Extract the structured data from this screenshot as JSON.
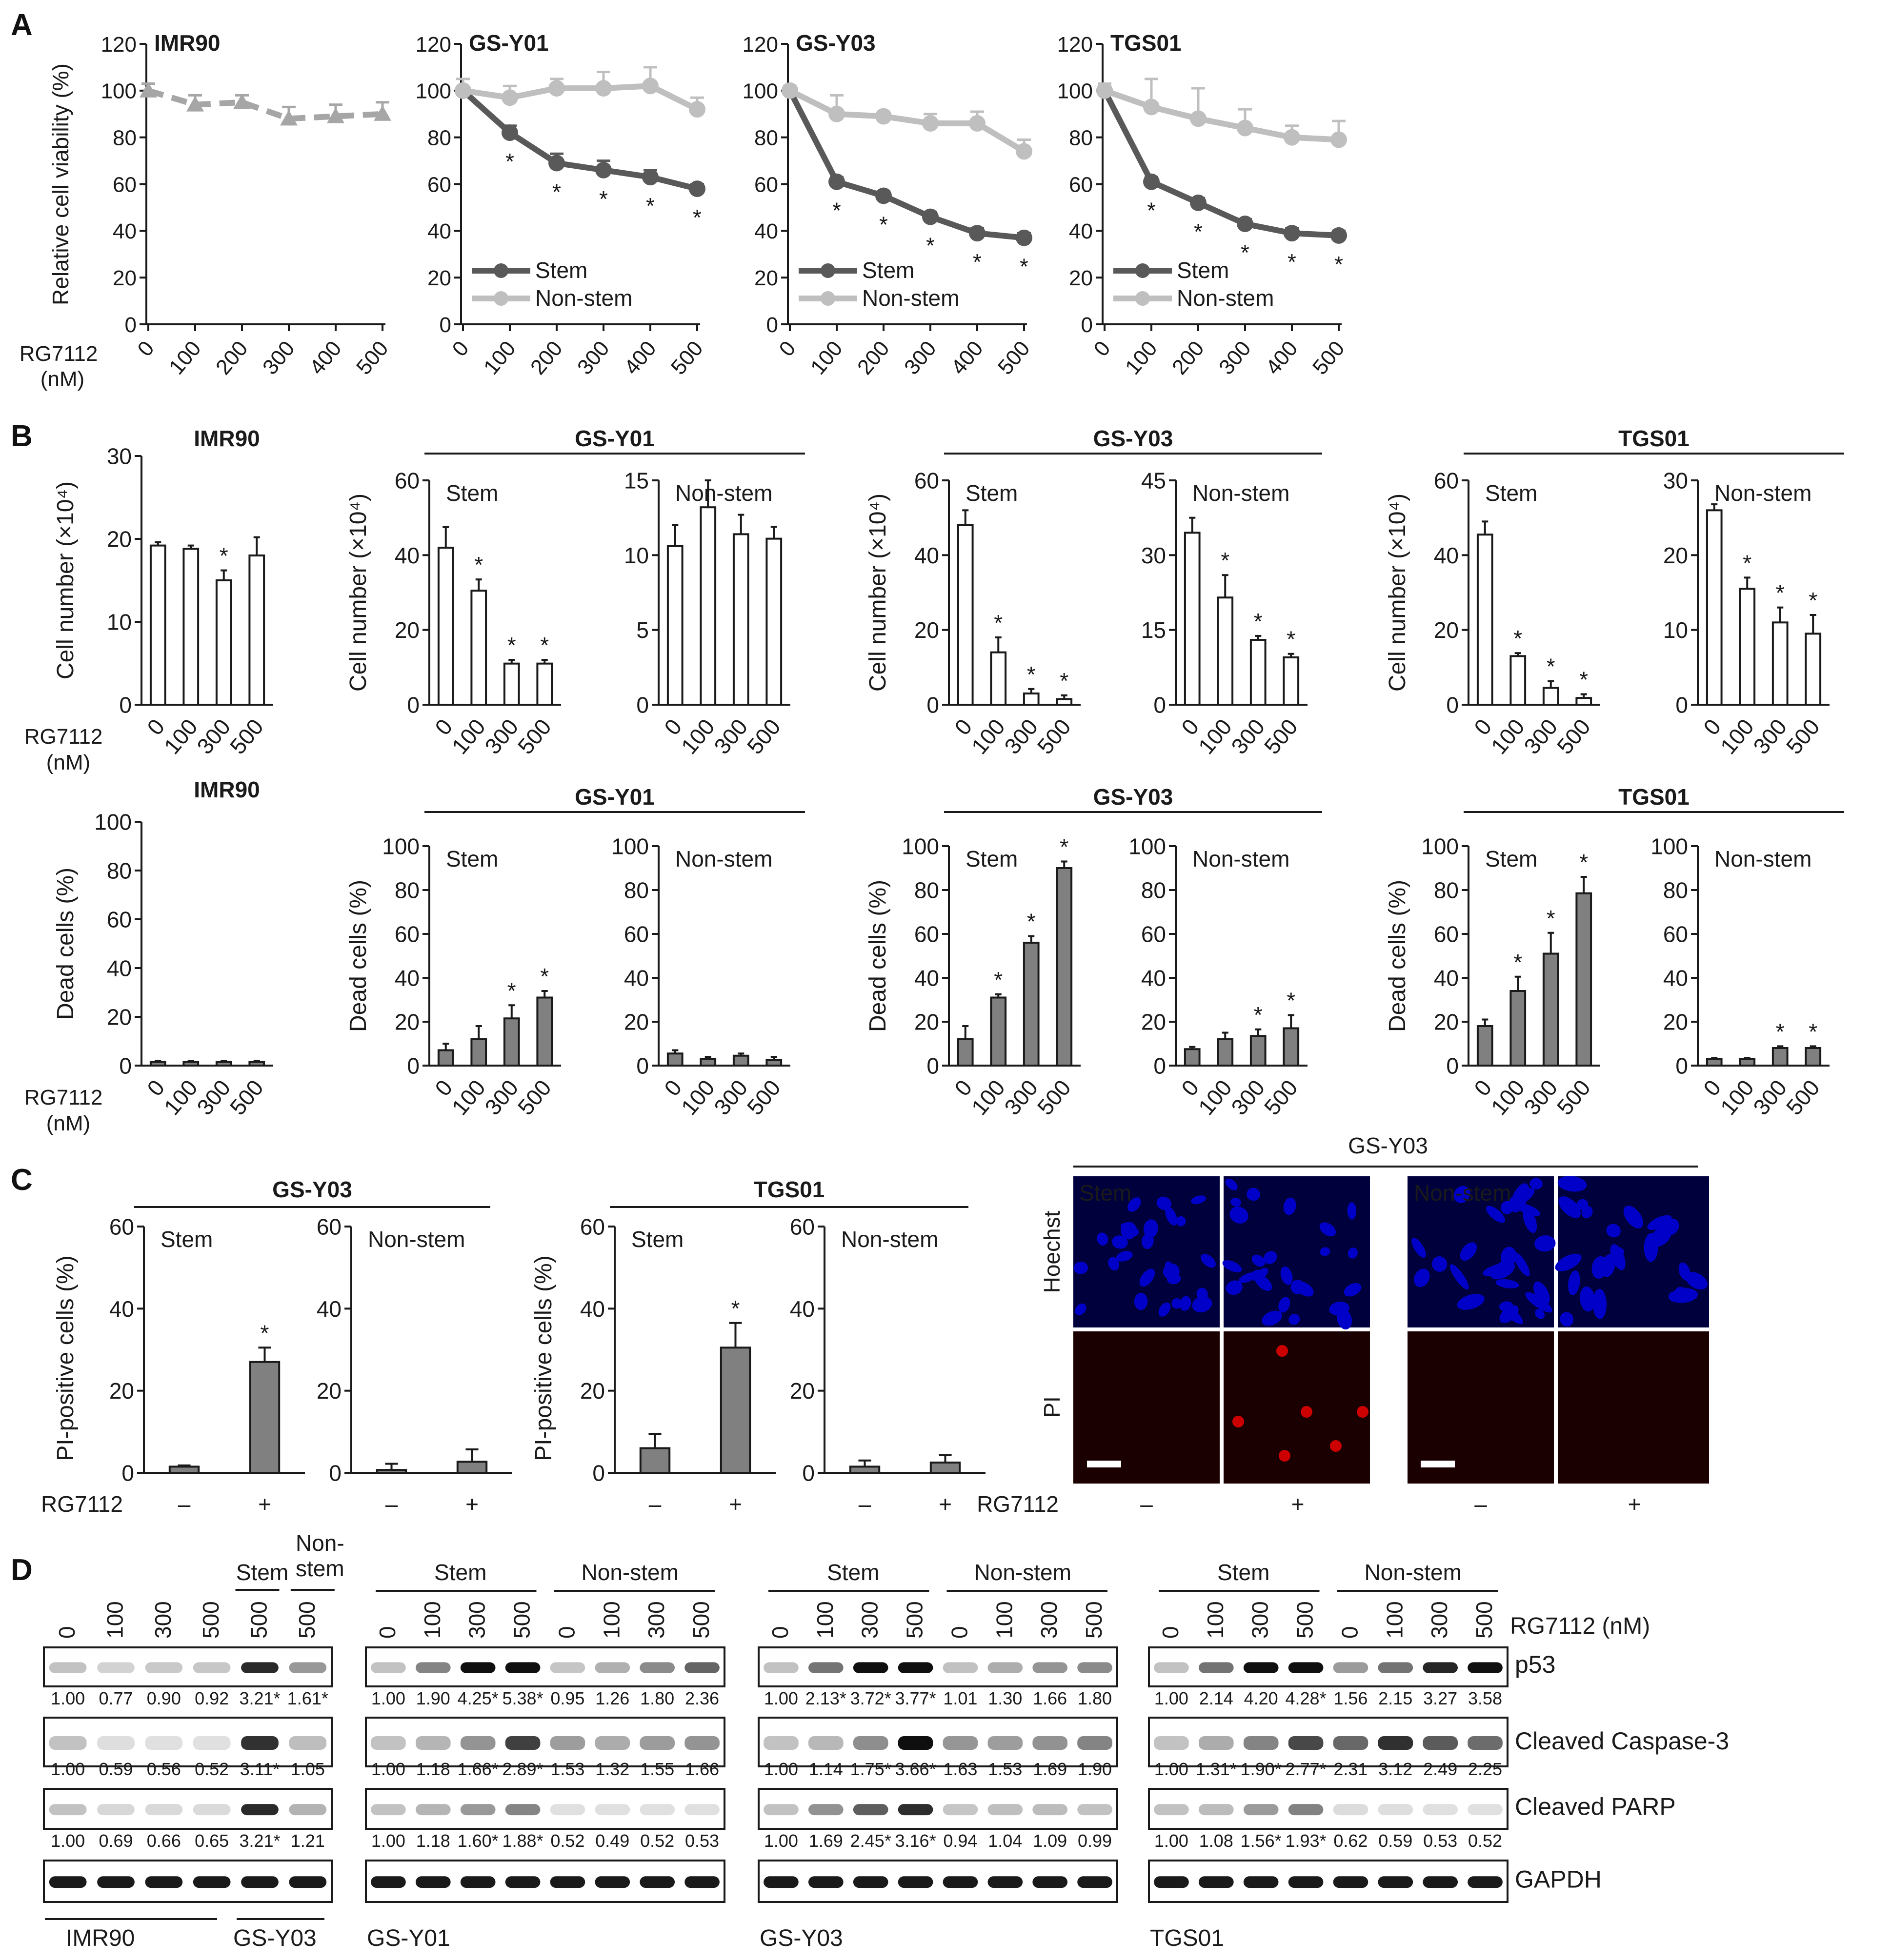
{
  "panel_labels": [
    "A",
    "B",
    "C",
    "D"
  ],
  "colors": {
    "stem": "#595959",
    "nonstem": "#bfbfbf",
    "imr90": "#a6a6a6",
    "bar_white": "#ffffff",
    "bar_gray": "#808080",
    "hoechst": "#0000c8",
    "pi": "#cc0000",
    "ink": "#1a1a1a"
  },
  "common": {
    "drug": "RG7112",
    "nM": "(nM)",
    "drug_nm": "RG7112 (nM)",
    "stem": "Stem",
    "nonstem": "Non-stem",
    "star": "*",
    "minus": "–",
    "plus": "+"
  },
  "panelA": {
    "ylabel": "Relative cell viability (%)",
    "yticks": [
      "0",
      "20",
      "40",
      "60",
      "80",
      "100",
      "120"
    ],
    "xticks": [
      "0",
      "100",
      "200",
      "300",
      "400",
      "500"
    ],
    "chart_data": [
      {
        "type": "line",
        "title": "IMR90",
        "x": [
          0,
          100,
          200,
          300,
          400,
          500
        ],
        "ylim": [
          0,
          120
        ],
        "series": [
          {
            "name": "",
            "values": [
              100,
              94,
              95,
              88,
              89,
              90
            ],
            "errors": [
              3,
              4,
              3,
              5,
              5,
              5
            ],
            "sig": []
          }
        ]
      },
      {
        "type": "line",
        "title": "GS-Y01",
        "x": [
          0,
          100,
          200,
          300,
          400,
          500
        ],
        "ylim": [
          0,
          120
        ],
        "series": [
          {
            "name": "Stem",
            "values": [
              100,
              82,
              69,
              66,
              63,
              58
            ],
            "errors": [
              0,
              3,
              4,
              4,
              3,
              2
            ],
            "sig": [
              1,
              2,
              3,
              4,
              5
            ]
          },
          {
            "name": "Non-stem",
            "values": [
              100,
              97,
              101,
              101,
              102,
              92
            ],
            "errors": [
              5,
              5,
              4,
              7,
              8,
              5
            ],
            "sig": []
          }
        ]
      },
      {
        "type": "line",
        "title": "GS-Y03",
        "x": [
          0,
          100,
          200,
          300,
          400,
          500
        ],
        "ylim": [
          0,
          120
        ],
        "series": [
          {
            "name": "Stem",
            "values": [
              100,
              61,
              55,
              46,
              39,
              37
            ],
            "errors": [
              0,
              2,
              2,
              2,
              2,
              2
            ],
            "sig": [
              1,
              2,
              3,
              4,
              5
            ]
          },
          {
            "name": "Non-stem",
            "values": [
              100,
              90,
              89,
              86,
              86,
              74
            ],
            "errors": [
              2,
              8,
              2,
              4,
              5,
              5
            ],
            "sig": []
          }
        ]
      },
      {
        "type": "line",
        "title": "TGS01",
        "x": [
          0,
          100,
          200,
          300,
          400,
          500
        ],
        "ylim": [
          0,
          120
        ],
        "series": [
          {
            "name": "Stem",
            "values": [
              100,
              61,
              52,
              43,
              39,
              38
            ],
            "errors": [
              0,
              2,
              2,
              2,
              2,
              2
            ],
            "sig": [
              1,
              2,
              3,
              4,
              5
            ]
          },
          {
            "name": "Non-stem",
            "values": [
              100,
              93,
              88,
              84,
              80,
              79
            ],
            "errors": [
              3,
              12,
              13,
              8,
              5,
              8
            ],
            "sig": []
          }
        ]
      }
    ]
  },
  "panelB": {
    "ylabel_count": "Cell number (×10⁴)",
    "ylabel_dead": "Dead cells (%)",
    "xticks": [
      "0",
      "100",
      "300",
      "500"
    ],
    "groups": [
      "GS-Y01",
      "GS-Y03",
      "TGS01"
    ],
    "chart_data": [
      {
        "type": "bar",
        "title": "IMR90",
        "categories": [
          "0",
          "100",
          "300",
          "500"
        ],
        "values": [
          19.2,
          18.8,
          15,
          18
        ],
        "errors": [
          0.4,
          0.4,
          1.2,
          2.2
        ],
        "ylim": [
          0,
          30
        ],
        "yticks": [
          "0",
          "10",
          "20",
          "30"
        ],
        "sig": [
          2
        ]
      },
      {
        "type": "bar",
        "title": "Stem",
        "categories": [
          "0",
          "100",
          "300",
          "500"
        ],
        "values": [
          42,
          30.5,
          11,
          11
        ],
        "errors": [
          5.5,
          3,
          1,
          1
        ],
        "ylim": [
          0,
          60
        ],
        "yticks": [
          "0",
          "20",
          "40",
          "60"
        ],
        "sig": [
          1,
          2,
          3
        ]
      },
      {
        "type": "bar",
        "title": "Non-stem",
        "categories": [
          "0",
          "100",
          "300",
          "500"
        ],
        "values": [
          10.6,
          13.2,
          11.4,
          11.1
        ],
        "errors": [
          1.4,
          1.8,
          1.3,
          0.8
        ],
        "ylim": [
          0,
          15
        ],
        "yticks": [
          "0",
          "5",
          "10",
          "15"
        ],
        "sig": []
      },
      {
        "type": "bar",
        "title": "Stem",
        "categories": [
          "0",
          "100",
          "300",
          "500"
        ],
        "values": [
          48,
          14,
          3,
          1.5
        ],
        "errors": [
          4,
          4,
          1.2,
          1
        ],
        "ylim": [
          0,
          60
        ],
        "yticks": [
          "0",
          "20",
          "40",
          "60"
        ],
        "sig": [
          1,
          2,
          3
        ]
      },
      {
        "type": "bar",
        "title": "Non-stem",
        "categories": [
          "0",
          "100",
          "300",
          "500"
        ],
        "values": [
          34.5,
          21.5,
          13,
          9.5
        ],
        "errors": [
          3,
          4.5,
          0.8,
          0.7
        ],
        "ylim": [
          0,
          45
        ],
        "yticks": [
          "0",
          "15",
          "30",
          "45"
        ],
        "sig": [
          1,
          2,
          3
        ]
      },
      {
        "type": "bar",
        "title": "Stem",
        "categories": [
          "0",
          "100",
          "300",
          "500"
        ],
        "values": [
          45.5,
          13,
          4.5,
          1.8
        ],
        "errors": [
          3.5,
          0.8,
          1.8,
          1
        ],
        "ylim": [
          0,
          60
        ],
        "yticks": [
          "0",
          "20",
          "40",
          "60"
        ],
        "sig": [
          1,
          2,
          3
        ]
      },
      {
        "type": "bar",
        "title": "Non-stem",
        "categories": [
          "0",
          "100",
          "300",
          "500"
        ],
        "values": [
          26,
          15.5,
          11,
          9.5
        ],
        "errors": [
          0.8,
          1.5,
          2,
          2.5
        ],
        "ylim": [
          0,
          30
        ],
        "yticks": [
          "0",
          "10",
          "20",
          "30"
        ],
        "sig": [
          1,
          2,
          3
        ]
      },
      {
        "type": "bar",
        "title": "IMR90",
        "categories": [
          "0",
          "100",
          "300",
          "500"
        ],
        "values": [
          1.5,
          1.5,
          1.5,
          1.5
        ],
        "errors": [
          0.5,
          0.5,
          0.5,
          0.5
        ],
        "ylim": [
          0,
          100
        ],
        "yticks": [
          "0",
          "20",
          "40",
          "60",
          "80",
          "100"
        ],
        "sig": []
      },
      {
        "type": "bar",
        "title": "Stem",
        "categories": [
          "0",
          "100",
          "300",
          "500"
        ],
        "values": [
          7,
          12,
          21.5,
          31
        ],
        "errors": [
          3,
          6,
          6,
          3
        ],
        "ylim": [
          0,
          100
        ],
        "yticks": [
          "0",
          "20",
          "40",
          "60",
          "80",
          "100"
        ],
        "sig": [
          2,
          3
        ]
      },
      {
        "type": "bar",
        "title": "Non-stem",
        "categories": [
          "0",
          "100",
          "300",
          "500"
        ],
        "values": [
          5.5,
          3,
          4.5,
          2.5
        ],
        "errors": [
          1.5,
          1,
          1,
          1.5
        ],
        "ylim": [
          0,
          100
        ],
        "yticks": [
          "0",
          "20",
          "40",
          "60",
          "80",
          "100"
        ],
        "sig": []
      },
      {
        "type": "bar",
        "title": "Stem",
        "categories": [
          "0",
          "100",
          "300",
          "500"
        ],
        "values": [
          12,
          31,
          56,
          90
        ],
        "errors": [
          6,
          1.5,
          3,
          3
        ],
        "ylim": [
          0,
          100
        ],
        "yticks": [
          "0",
          "20",
          "40",
          "60",
          "80",
          "100"
        ],
        "sig": [
          1,
          2,
          3
        ]
      },
      {
        "type": "bar",
        "title": "Non-stem",
        "categories": [
          "0",
          "100",
          "300",
          "500"
        ],
        "values": [
          7.5,
          12,
          13.5,
          17
        ],
        "errors": [
          1,
          3,
          3,
          6
        ],
        "ylim": [
          0,
          100
        ],
        "yticks": [
          "0",
          "20",
          "40",
          "60",
          "80",
          "100"
        ],
        "sig": [
          2,
          3
        ]
      },
      {
        "type": "bar",
        "title": "Stem",
        "categories": [
          "0",
          "100",
          "300",
          "500"
        ],
        "values": [
          18,
          34,
          51,
          78.5
        ],
        "errors": [
          3,
          6.5,
          9.5,
          7.5
        ],
        "ylim": [
          0,
          100
        ],
        "yticks": [
          "0",
          "20",
          "40",
          "60",
          "80",
          "100"
        ],
        "sig": [
          1,
          2,
          3
        ]
      },
      {
        "type": "bar",
        "title": "Non-stem",
        "categories": [
          "0",
          "100",
          "300",
          "500"
        ],
        "values": [
          3,
          3,
          8,
          8
        ],
        "errors": [
          0.5,
          0.5,
          0.8,
          0.8
        ],
        "ylim": [
          0,
          100
        ],
        "yticks": [
          "0",
          "20",
          "40",
          "60",
          "80",
          "100"
        ],
        "sig": [
          2,
          3
        ]
      }
    ]
  },
  "panelC": {
    "ylabel": "PI-positive cells (%)",
    "yticks": [
      "0",
      "20",
      "40",
      "60"
    ],
    "xticks": [
      "–",
      "+"
    ],
    "groups": [
      "GS-Y03",
      "TGS01"
    ],
    "chart_data": [
      {
        "type": "bar",
        "title": "Stem",
        "categories": [
          "–",
          "+"
        ],
        "values": [
          1.5,
          27
        ],
        "errors": [
          0.3,
          3.5
        ],
        "ylim": [
          0,
          60
        ],
        "sig": [
          1
        ]
      },
      {
        "type": "bar",
        "title": "Non-stem",
        "categories": [
          "–",
          "+"
        ],
        "values": [
          0.7,
          2.7
        ],
        "errors": [
          1.5,
          3
        ],
        "ylim": [
          0,
          60
        ],
        "sig": []
      },
      {
        "type": "bar",
        "title": "Stem",
        "categories": [
          "–",
          "+"
        ],
        "values": [
          6,
          30.5
        ],
        "errors": [
          3.5,
          6
        ],
        "ylim": [
          0,
          60
        ],
        "sig": [
          1
        ]
      },
      {
        "type": "bar",
        "title": "Non-stem",
        "categories": [
          "–",
          "+"
        ],
        "values": [
          1.5,
          2.5
        ],
        "errors": [
          1.5,
          1.8
        ],
        "ylim": [
          0,
          60
        ],
        "sig": []
      }
    ],
    "micro": {
      "title": "GS-Y03",
      "row_labels": [
        "Hoechst",
        "PI"
      ],
      "col_labels": [
        "Stem",
        "Non-stem"
      ],
      "treatments": [
        "–",
        "+",
        "–",
        "+"
      ]
    }
  },
  "panelD": {
    "protein_labels": [
      "p53",
      "Cleaved Caspase-3",
      "Cleaved PARP",
      "GAPDH"
    ],
    "lane_ticks": [
      "0",
      "100",
      "300",
      "500"
    ],
    "first_block": {
      "lanes": [
        "0",
        "100",
        "300",
        "500",
        "500",
        "500"
      ],
      "header_stem": "Stem",
      "header_non": "Non-",
      "header_non2": "stem",
      "footer": [
        "IMR90",
        "GS-Y03"
      ]
    },
    "blocks": [
      {
        "name": "IMR90 / GS-Y03",
        "p53": [
          1.0,
          0.77,
          0.9,
          0.92,
          "3.21*",
          "1.61*"
        ],
        "casp3": [
          1.0,
          0.59,
          0.56,
          0.52,
          "3.11*",
          1.05
        ],
        "parp": [
          1.0,
          0.69,
          0.66,
          0.65,
          "3.21*",
          1.21
        ]
      },
      {
        "name": "GS-Y01",
        "p53": [
          1.0,
          1.9,
          "4.25*",
          "5.38*",
          0.95,
          1.26,
          1.8,
          2.36
        ],
        "casp3": [
          1.0,
          1.18,
          "1.66*",
          "2.89*",
          1.53,
          1.32,
          1.55,
          1.66
        ],
        "parp": [
          1.0,
          1.18,
          "1.60*",
          "1.88*",
          0.52,
          0.49,
          0.52,
          0.53
        ]
      },
      {
        "name": "GS-Y03",
        "p53": [
          1.0,
          "2.13*",
          "3.72*",
          "3.77*",
          1.01,
          1.3,
          1.66,
          1.8
        ],
        "casp3": [
          1.0,
          1.14,
          "1.75*",
          "3.66*",
          1.63,
          1.53,
          1.69,
          1.9
        ],
        "parp": [
          1.0,
          1.69,
          "2.45*",
          "3.16*",
          0.94,
          1.04,
          1.09,
          0.99
        ]
      },
      {
        "name": "TGS01",
        "p53": [
          1.0,
          2.14,
          4.2,
          "4.28*",
          1.56,
          2.15,
          3.27,
          3.58
        ],
        "casp3": [
          1.0,
          "1.31*",
          "1.90*",
          "2.77*",
          2.31,
          3.12,
          2.49,
          2.25
        ],
        "parp": [
          1.0,
          1.08,
          "1.56*",
          "1.93*",
          0.62,
          0.59,
          0.53,
          0.52
        ]
      }
    ]
  }
}
